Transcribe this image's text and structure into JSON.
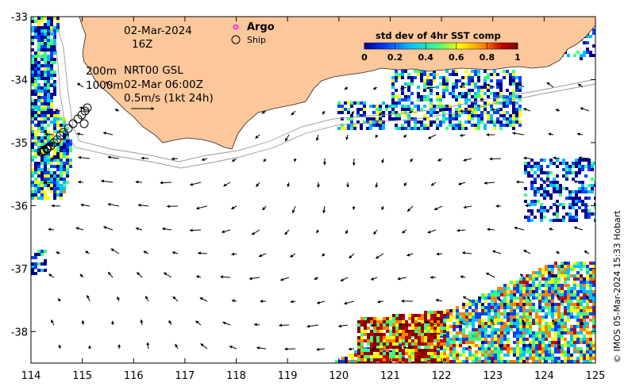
{
  "map": {
    "lon_range": [
      114,
      125
    ],
    "lat_range": [
      -38.5,
      -33
    ],
    "x_ticks": [
      "114",
      "115",
      "116",
      "117",
      "118",
      "119",
      "120",
      "121",
      "122",
      "123",
      "124",
      "125"
    ],
    "y_ticks": [
      "-33",
      "-34",
      "-35",
      "-36",
      "-37",
      "-38"
    ],
    "land_color": "#fcc89b",
    "sst_colorbar": {
      "title": "std dev of 4hr SST comp",
      "ticks": [
        "0",
        "0.2",
        "0.4",
        "0.6",
        "0.8",
        "1"
      ],
      "colors": [
        "#00008f",
        "#0040ff",
        "#00c0ff",
        "#40ff80",
        "#ffff00",
        "#ff8000",
        "#c00000",
        "#800000"
      ]
    },
    "date_line": "02-Mar-2024",
    "hour_line": "16Z",
    "legend": {
      "argo_label": "Argo",
      "argo_color": "#ff00ff",
      "ship_label": "Ship"
    },
    "info": {
      "line1_depth": "200m",
      "line1_text": "NRT00 GSL",
      "line2_depth": "1000m",
      "line2_text": "02-Mar 06:00Z",
      "scale_text": "0.5m/s (1kt 24h)"
    },
    "credit": "© IMOS 05-Mar-2024 15:33 Hobart"
  }
}
